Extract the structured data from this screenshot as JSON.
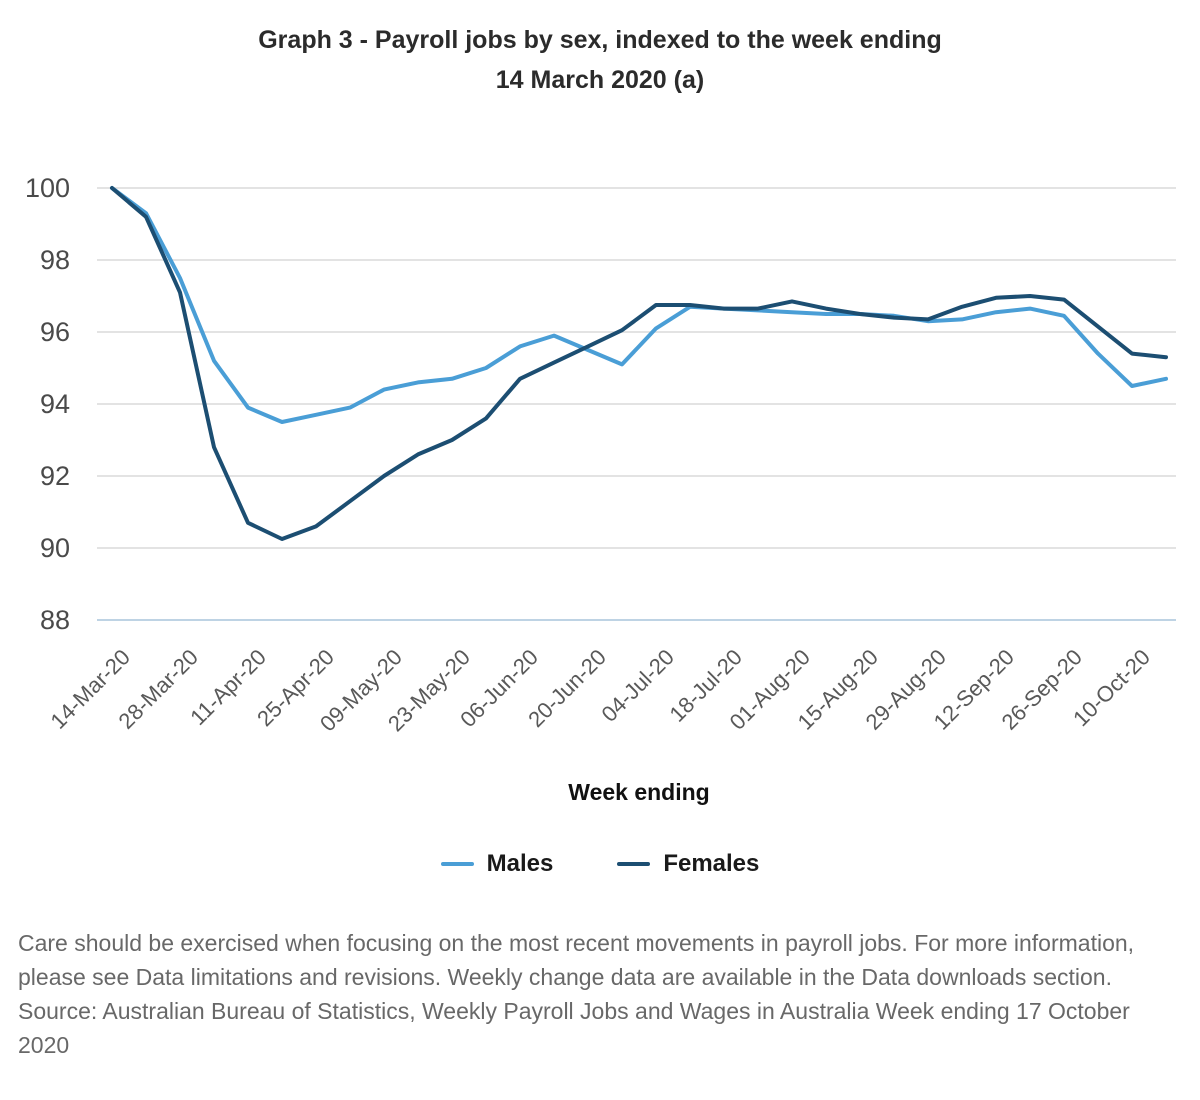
{
  "title_line1": "Graph 3 - Payroll jobs by sex, indexed to the week ending",
  "title_line2": "14 March 2020 (a)",
  "chart_data": {
    "type": "line",
    "title": "Graph 3 - Payroll jobs by sex, indexed to the week ending 14 March 2020 (a)",
    "xlabel": "Week ending",
    "ylabel": "",
    "ylim": [
      88,
      100
    ],
    "y_ticks": [
      100,
      98,
      96,
      94,
      92,
      90,
      88
    ],
    "grid": "horizontal",
    "legend_position": "bottom",
    "grid_color": "#dadada",
    "baseline_color": "#bed3e4",
    "x": [
      "14-Mar-20",
      "21-Mar-20",
      "28-Mar-20",
      "04-Apr-20",
      "11-Apr-20",
      "18-Apr-20",
      "25-Apr-20",
      "02-May-20",
      "09-May-20",
      "16-May-20",
      "23-May-20",
      "30-May-20",
      "06-Jun-20",
      "13-Jun-20",
      "20-Jun-20",
      "27-Jun-20",
      "04-Jul-20",
      "11-Jul-20",
      "18-Jul-20",
      "25-Jul-20",
      "01-Aug-20",
      "08-Aug-20",
      "15-Aug-20",
      "22-Aug-20",
      "29-Aug-20",
      "05-Sep-20",
      "12-Sep-20",
      "19-Sep-20",
      "26-Sep-20",
      "03-Oct-20",
      "10-Oct-20",
      "17-Oct-20"
    ],
    "x_tick_labels": [
      "14-Mar-20",
      "28-Mar-20",
      "11-Apr-20",
      "25-Apr-20",
      "09-May-20",
      "23-May-20",
      "06-Jun-20",
      "20-Jun-20",
      "04-Jul-20",
      "18-Jul-20",
      "01-Aug-20",
      "15-Aug-20",
      "29-Aug-20",
      "12-Sep-20",
      "26-Sep-20",
      "10-Oct-20"
    ],
    "series": [
      {
        "name": "Males",
        "color": "#4a9ed6",
        "values": [
          100,
          99.3,
          97.5,
          95.2,
          93.9,
          93.5,
          93.7,
          93.9,
          94.4,
          94.6,
          94.7,
          95.0,
          95.6,
          95.9,
          95.5,
          95.1,
          96.1,
          96.7,
          96.65,
          96.6,
          96.55,
          96.5,
          96.5,
          96.45,
          96.3,
          96.35,
          96.55,
          96.65,
          96.45,
          95.4,
          94.5,
          94.7
        ]
      },
      {
        "name": "Females",
        "color": "#1c4e72",
        "values": [
          100,
          99.2,
          97.1,
          92.8,
          90.7,
          90.25,
          90.6,
          91.3,
          92.0,
          92.6,
          93.0,
          93.6,
          94.7,
          95.15,
          95.6,
          96.05,
          96.75,
          96.75,
          96.65,
          96.65,
          96.85,
          96.65,
          96.5,
          96.4,
          96.35,
          96.7,
          96.95,
          97.0,
          96.9,
          96.15,
          95.4,
          95.3
        ]
      }
    ]
  },
  "footer": {
    "note": "Care should be exercised when focusing on the most recent movements in payroll jobs. For more information, please see Data limitations and revisions. Weekly change data are available in the Data downloads section.",
    "source": "Source: Australian Bureau of Statistics, Weekly Payroll Jobs and Wages in Australia Week ending 17 October 2020"
  }
}
